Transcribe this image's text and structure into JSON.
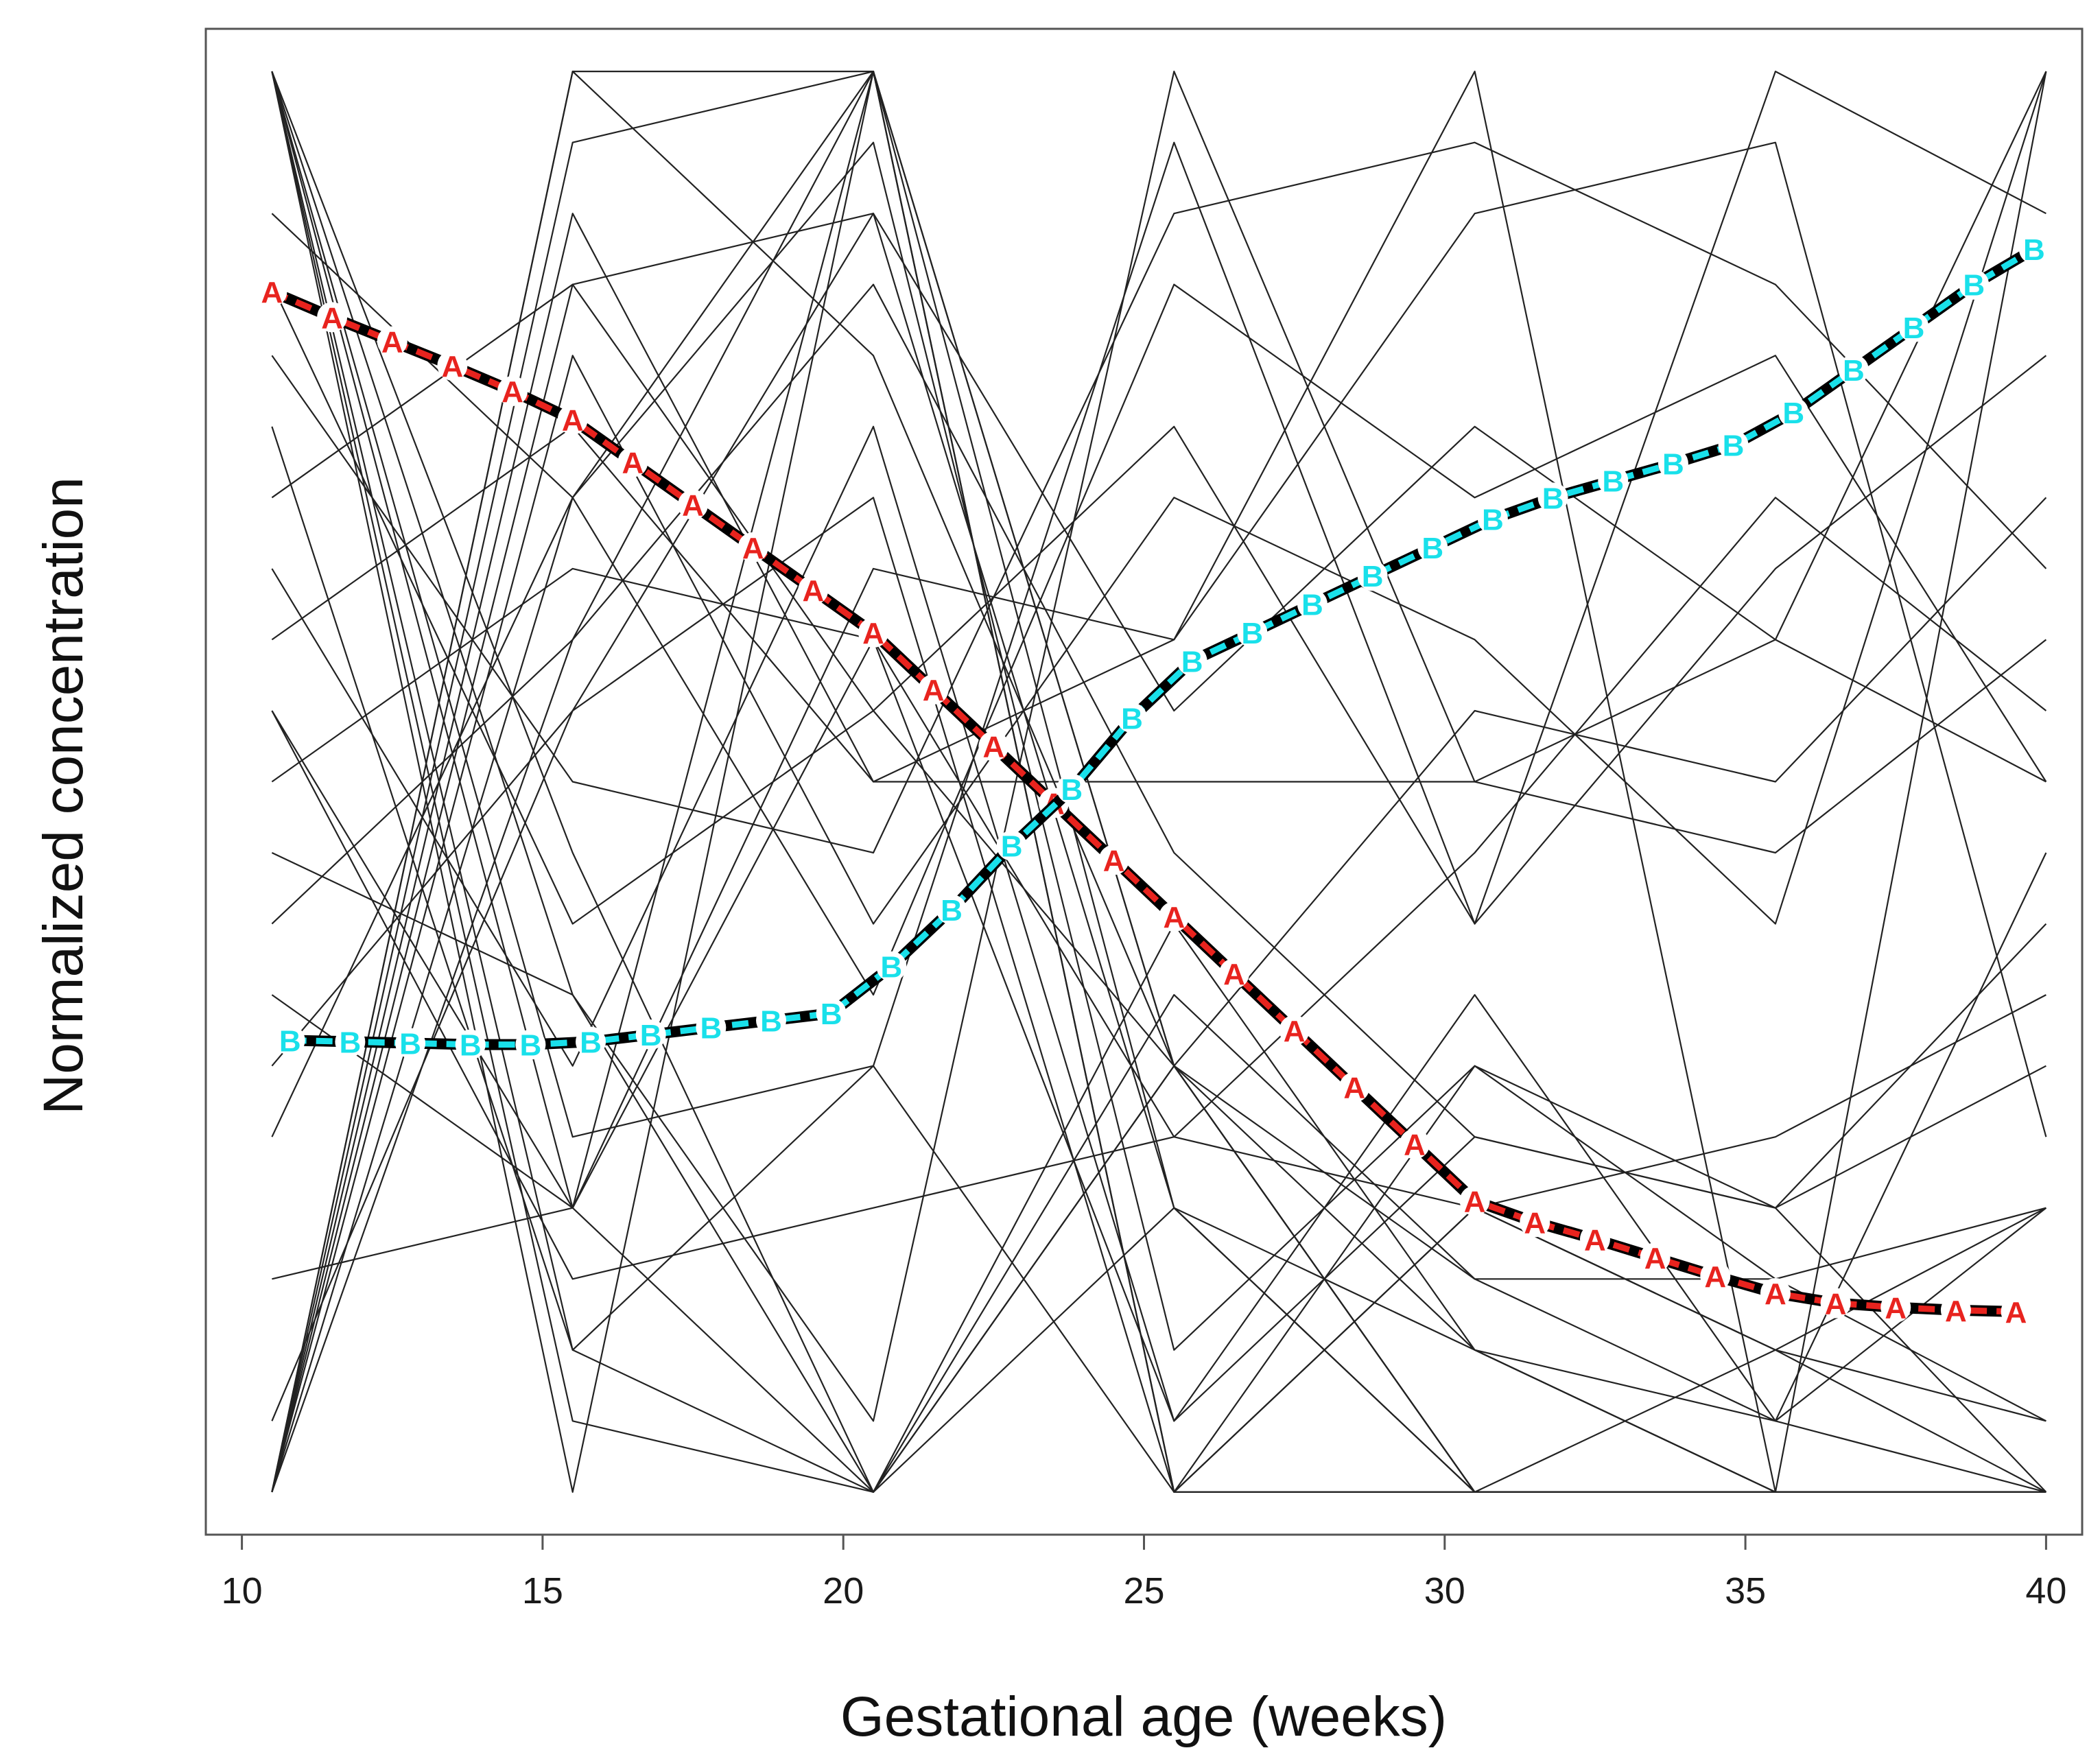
{
  "chart_data": {
    "type": "line",
    "title": "",
    "xlabel": "Gestational age (weeks)",
    "ylabel": "Normalized concentration",
    "xlim": [
      9.4,
      40.6
    ],
    "ylim": [
      -0.03,
      1.03
    ],
    "x_ticks": [
      10,
      15,
      20,
      25,
      30,
      35,
      40
    ],
    "x_tick_labels": [
      "10",
      "15",
      "20",
      "25",
      "30",
      "35",
      "40"
    ],
    "y_ticks": [],
    "grid": false,
    "legend": "none",
    "background_series": {
      "description": "individual analyte trajectories (thin black lines)",
      "color": "#222222",
      "x": [
        10.5,
        15.5,
        20.5,
        25.5,
        30.5,
        35.5,
        40
      ],
      "lines": [
        [
          1,
          0,
          1,
          0,
          0,
          0,
          0
        ],
        [
          1,
          0.05,
          0,
          0.2,
          0,
          0,
          0
        ],
        [
          1,
          0.1,
          0,
          0.3,
          0,
          0,
          0
        ],
        [
          1,
          0.2,
          0,
          0.3,
          0,
          0,
          0
        ],
        [
          1,
          0.35,
          0,
          0.4,
          0.1,
          0,
          0
        ],
        [
          1,
          0.45,
          0,
          0.35,
          0.15,
          0.05,
          0
        ],
        [
          0,
          1,
          1,
          0,
          0.2,
          0.1,
          0.05
        ],
        [
          0,
          1,
          0.8,
          0.3,
          0,
          0,
          0
        ],
        [
          0,
          0.95,
          1,
          0.2,
          0.1,
          0,
          0
        ],
        [
          0,
          0.9,
          0.5,
          0.6,
          1,
          0,
          1
        ],
        [
          0,
          0.85,
          0.9,
          0.55,
          0.75,
          0.6,
          1
        ],
        [
          0,
          0.8,
          0.4,
          0.7,
          0.6,
          0.4,
          1
        ],
        [
          0,
          0.7,
          0.95,
          0.1,
          0.3,
          0.2,
          0
        ],
        [
          0.05,
          0.55,
          0.7,
          0,
          0.2,
          0.1,
          0
        ],
        [
          0,
          0.6,
          1,
          0,
          0,
          0,
          0
        ],
        [
          0.3,
          0.55,
          0.9,
          0.2,
          0,
          0.1,
          0.2
        ],
        [
          0.4,
          0.6,
          0.85,
          0.45,
          0.25,
          0.2,
          0.3
        ],
        [
          0.5,
          0.65,
          0.6,
          0.25,
          0.2,
          0.25,
          0.35
        ],
        [
          0.6,
          0.75,
          0.5,
          0.5,
          0.5,
          0.45,
          0.6
        ],
        [
          0.7,
          0.85,
          0.55,
          0.75,
          0.4,
          0.65,
          0.8
        ],
        [
          0.85,
          0.4,
          0.55,
          0.3,
          0.55,
          0.5,
          0.7
        ],
        [
          0.9,
          0.7,
          0.35,
          0.85,
          0.7,
          0.8,
          0.5
        ],
        [
          0.55,
          0.2,
          1,
          0.3,
          0.15,
          0.15,
          0.05
        ],
        [
          0.25,
          0.7,
          1,
          0.3,
          0.1,
          0.05,
          0.2
        ],
        [
          0.35,
          0.2,
          0.6,
          0.05,
          0.35,
          0.05,
          0.45
        ],
        [
          0.65,
          0.3,
          0.75,
          0.05,
          0.25,
          0.2,
          0.4
        ],
        [
          0.45,
          0.35,
          0.05,
          1,
          0.5,
          0.6,
          0.5
        ],
        [
          0.15,
          0.2,
          0.65,
          0.6,
          0.9,
          0.95,
          0.25
        ],
        [
          0.75,
          0.1,
          0.3,
          0.95,
          0.4,
          1,
          0.9
        ],
        [
          0.8,
          0.5,
          0.45,
          0.9,
          0.95,
          0.85,
          0.65
        ],
        [
          1,
          0.25,
          0.3,
          0,
          0.3,
          0.15,
          0.2
        ],
        [
          0.55,
          0.15,
          0.2,
          0.25,
          0.45,
          0.7,
          0.55
        ]
      ]
    },
    "series": [
      {
        "name": "A",
        "color": "#e8231e",
        "x": [
          10.5,
          11.5,
          12.5,
          13.5,
          14.5,
          15.5,
          16.5,
          17.5,
          18.5,
          19.5,
          20.5,
          21.5,
          22.5,
          23.5,
          24.5,
          25.5,
          26.5,
          27.5,
          28.5,
          29.5,
          30.5,
          31.5,
          32.5,
          33.5,
          34.5,
          35.5,
          36.5,
          37.5,
          38.5,
          39.5
        ],
        "values": [
          0.845,
          0.827,
          0.81,
          0.793,
          0.775,
          0.755,
          0.725,
          0.695,
          0.665,
          0.635,
          0.605,
          0.565,
          0.525,
          0.485,
          0.445,
          0.405,
          0.365,
          0.325,
          0.285,
          0.245,
          0.205,
          0.19,
          0.178,
          0.165,
          0.152,
          0.14,
          0.133,
          0.13,
          0.128,
          0.127
        ]
      },
      {
        "name": "B",
        "color": "#19e0ea",
        "x": [
          10.8,
          11.8,
          12.8,
          13.8,
          14.8,
          15.8,
          16.8,
          17.8,
          18.8,
          19.8,
          20.8,
          21.8,
          22.8,
          23.8,
          24.8,
          25.8,
          26.8,
          27.8,
          28.8,
          29.8,
          30.8,
          31.8,
          32.8,
          33.8,
          34.8,
          35.8,
          36.8,
          37.8,
          38.8,
          39.8
        ],
        "values": [
          0.318,
          0.317,
          0.316,
          0.315,
          0.315,
          0.317,
          0.322,
          0.327,
          0.332,
          0.337,
          0.37,
          0.41,
          0.455,
          0.495,
          0.545,
          0.585,
          0.605,
          0.625,
          0.645,
          0.665,
          0.685,
          0.7,
          0.712,
          0.724,
          0.737,
          0.76,
          0.79,
          0.82,
          0.85,
          0.875
        ]
      }
    ]
  }
}
